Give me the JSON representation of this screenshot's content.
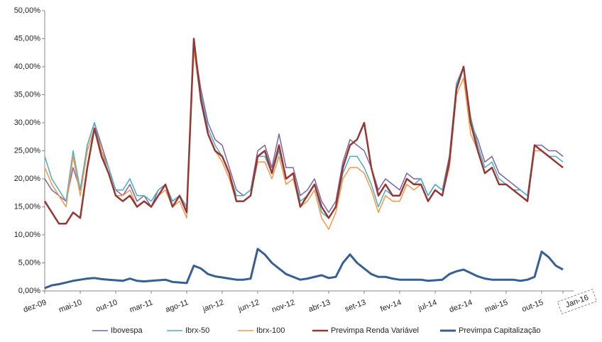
{
  "chart_data": {
    "type": "line",
    "categories": [
      "dez-09",
      null,
      null,
      null,
      null,
      "mai-10",
      null,
      null,
      null,
      null,
      "out-10",
      null,
      null,
      null,
      null,
      "mar-11",
      null,
      null,
      null,
      null,
      "ago-11",
      null,
      null,
      null,
      null,
      "jan-12",
      null,
      null,
      null,
      null,
      "jun-12",
      null,
      null,
      null,
      null,
      "nov-12",
      null,
      null,
      null,
      null,
      "abr-13",
      null,
      null,
      null,
      null,
      "set-13",
      null,
      null,
      null,
      null,
      "fev-14",
      null,
      null,
      null,
      null,
      "jul-14",
      null,
      null,
      null,
      null,
      "dez-14",
      null,
      null,
      null,
      null,
      "mai-15",
      null,
      null,
      null,
      null,
      "out-15",
      null,
      null,
      "Jan-16"
    ],
    "ylim": [
      0,
      50
    ],
    "yticks": [
      {
        "value": 0,
        "label": "0,00%"
      },
      {
        "value": 5,
        "label": "5,00%"
      },
      {
        "value": 10,
        "label": "10,00%"
      },
      {
        "value": 15,
        "label": "15,00%"
      },
      {
        "value": 20,
        "label": "20,00%"
      },
      {
        "value": 25,
        "label": "25,00%"
      },
      {
        "value": 30,
        "label": "30,00%"
      },
      {
        "value": 35,
        "label": "35,00%"
      },
      {
        "value": 40,
        "label": "40,00%"
      },
      {
        "value": 45,
        "label": "45,00%"
      },
      {
        "value": 50,
        "label": "50,00%"
      }
    ],
    "grid": false,
    "legend": "bottom",
    "series": [
      {
        "name": "Ibovespa",
        "color": "#8064a2",
        "values": [
          20,
          18,
          17,
          16,
          22,
          18,
          26,
          30,
          26,
          22,
          18,
          17,
          19,
          16,
          17,
          15,
          18,
          19,
          16,
          17,
          15,
          44,
          36,
          30,
          27,
          26,
          22,
          18,
          17,
          18,
          25,
          26,
          22,
          28,
          22,
          22,
          17,
          18,
          20,
          16,
          14,
          16,
          23,
          27,
          26,
          25,
          22,
          18,
          20,
          19,
          18,
          21,
          20,
          20,
          17,
          19,
          18,
          24,
          37,
          40,
          30,
          27,
          23,
          24,
          21,
          20,
          19,
          18,
          17,
          26,
          26,
          25,
          25,
          24
        ]
      },
      {
        "name": "Ibrx-50",
        "color": "#4bacc6",
        "values": [
          24,
          20,
          18,
          16,
          25,
          18,
          26,
          30,
          25,
          22,
          18,
          18,
          20,
          17,
          17,
          16,
          18,
          19,
          16,
          17,
          15,
          44,
          35,
          29,
          26,
          24,
          21,
          17,
          17,
          18,
          24,
          24,
          21,
          25,
          20,
          21,
          16,
          17,
          19,
          14,
          13,
          15,
          21,
          24,
          24,
          22,
          19,
          15,
          18,
          17,
          17,
          20,
          19,
          20,
          17,
          19,
          18,
          23,
          37,
          40,
          31,
          26,
          22,
          23,
          20,
          19,
          18,
          18,
          17,
          26,
          25,
          24,
          24,
          23
        ]
      },
      {
        "name": "Ibrx-100",
        "color": "#f79646",
        "values": [
          22,
          19,
          17,
          15,
          24,
          17,
          25,
          29,
          25,
          21,
          17,
          17,
          18,
          15,
          16,
          15,
          17,
          18,
          15,
          16,
          13,
          43,
          34,
          28,
          25,
          23,
          20,
          16,
          16,
          17,
          23,
          23,
          20,
          24,
          19,
          20,
          15,
          16,
          18,
          13,
          11,
          14,
          20,
          22,
          22,
          21,
          18,
          14,
          17,
          16,
          16,
          19,
          18,
          19,
          16,
          18,
          17,
          22,
          35,
          38,
          28,
          25,
          21,
          22,
          19,
          19,
          18,
          17,
          16,
          25,
          25,
          24,
          23,
          22
        ]
      },
      {
        "name": "Previmpa Renda Variável",
        "color": "#953735",
        "values": [
          16,
          14,
          12,
          12,
          14,
          13,
          22,
          29,
          24,
          21,
          17,
          16,
          17,
          15,
          16,
          15,
          17,
          19,
          15,
          17,
          14,
          45,
          34,
          28,
          25,
          24,
          21,
          16,
          16,
          17,
          24,
          25,
          21,
          26,
          20,
          21,
          15,
          17,
          19,
          15,
          13,
          15,
          22,
          26,
          27,
          30,
          22,
          17,
          19,
          17,
          17,
          20,
          19,
          19,
          16,
          18,
          17,
          23,
          36,
          40,
          30,
          25,
          21,
          22,
          19,
          19,
          18,
          17,
          16,
          26,
          25,
          24,
          23,
          22
        ]
      },
      {
        "name": "Previmpa Capitalização",
        "color": "#376092",
        "values": [
          0.5,
          1.0,
          1.2,
          1.5,
          1.8,
          2.0,
          2.2,
          2.3,
          2.1,
          2.0,
          1.9,
          1.8,
          2.2,
          1.8,
          1.7,
          1.8,
          1.9,
          2.0,
          1.6,
          1.5,
          1.4,
          4.5,
          4.0,
          3.0,
          2.6,
          2.4,
          2.2,
          2.0,
          2.0,
          2.2,
          7.5,
          6.5,
          5.0,
          4.0,
          3.0,
          2.5,
          2.0,
          2.2,
          2.5,
          2.8,
          2.3,
          2.5,
          5.0,
          6.5,
          5.0,
          4.0,
          3.0,
          2.5,
          2.5,
          2.2,
          2.0,
          2.0,
          2.0,
          2.0,
          1.8,
          1.9,
          2.0,
          3.0,
          3.5,
          3.8,
          3.2,
          2.6,
          2.2,
          2.0,
          2.0,
          2.0,
          2.0,
          1.8,
          2.0,
          2.5,
          7.0,
          6.0,
          4.5,
          3.8
        ]
      }
    ]
  }
}
